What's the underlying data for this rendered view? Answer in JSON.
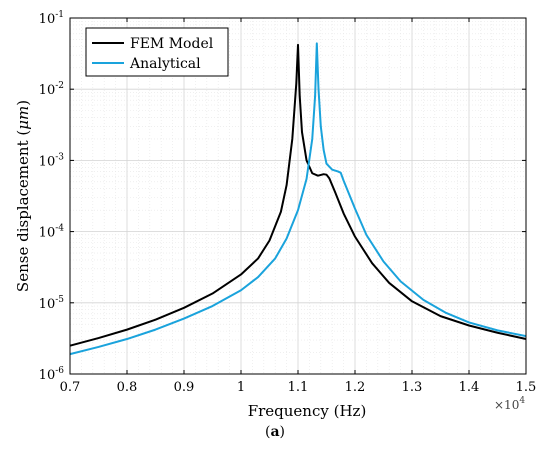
{
  "chart_data": {
    "type": "line",
    "xlabel": "Frequency (Hz)",
    "ylabel": "Sense displacement (μm)",
    "x_multiplier": "×10",
    "x_multiplier_exponent": "4",
    "xscale": "linear",
    "yscale": "log",
    "xlim": [
      0.7,
      1.5
    ],
    "ylim": [
      1e-06,
      0.1
    ],
    "x_ticks": [
      "0.7",
      "0.8",
      "0.9",
      "1",
      "1.1",
      "1.2",
      "1.3",
      "1.4",
      "1.5"
    ],
    "y_ticks": [
      {
        "value": 1e-06,
        "base": "10",
        "exp": "-6"
      },
      {
        "value": 1e-05,
        "base": "10",
        "exp": "-5"
      },
      {
        "value": 0.0001,
        "base": "10",
        "exp": "-4"
      },
      {
        "value": 0.001,
        "base": "10",
        "exp": "-3"
      },
      {
        "value": 0.01,
        "base": "10",
        "exp": "-2"
      },
      {
        "value": 0.1,
        "base": "10",
        "exp": "-1"
      }
    ],
    "grid": true,
    "legend_position": "top-left",
    "series": [
      {
        "name": "FEM Model",
        "color": "#000000",
        "points": [
          [
            0.7,
            2.5e-06
          ],
          [
            0.75,
            3.2e-06
          ],
          [
            0.8,
            4.2e-06
          ],
          [
            0.85,
            5.8e-06
          ],
          [
            0.9,
            8.5e-06
          ],
          [
            0.95,
            1.35e-05
          ],
          [
            1.0,
            2.5e-05
          ],
          [
            1.03,
            4.2e-05
          ],
          [
            1.05,
            7.5e-05
          ],
          [
            1.07,
            0.00019
          ],
          [
            1.08,
            0.00045
          ],
          [
            1.09,
            0.002
          ],
          [
            1.097,
            0.012
          ],
          [
            1.1,
            0.042
          ],
          [
            1.103,
            0.008
          ],
          [
            1.107,
            0.0025
          ],
          [
            1.115,
            0.001
          ],
          [
            1.125,
            0.00066
          ],
          [
            1.135,
            0.00061
          ],
          [
            1.145,
            0.00064
          ],
          [
            1.15,
            0.00063
          ],
          [
            1.155,
            0.00056
          ],
          [
            1.165,
            0.00036
          ],
          [
            1.18,
            0.00018
          ],
          [
            1.2,
            8.5e-05
          ],
          [
            1.23,
            3.6e-05
          ],
          [
            1.26,
            1.9e-05
          ],
          [
            1.3,
            1.05e-05
          ],
          [
            1.35,
            6.5e-06
          ],
          [
            1.4,
            4.8e-06
          ],
          [
            1.45,
            3.8e-06
          ],
          [
            1.5,
            3.1e-06
          ]
        ]
      },
      {
        "name": "Analytical",
        "color": "#1aa3dc",
        "points": [
          [
            0.7,
            1.9e-06
          ],
          [
            0.75,
            2.4e-06
          ],
          [
            0.8,
            3.1e-06
          ],
          [
            0.85,
            4.2e-06
          ],
          [
            0.9,
            6e-06
          ],
          [
            0.95,
            9e-06
          ],
          [
            1.0,
            1.5e-05
          ],
          [
            1.03,
            2.3e-05
          ],
          [
            1.06,
            4.2e-05
          ],
          [
            1.08,
            8e-05
          ],
          [
            1.1,
            0.0002
          ],
          [
            1.115,
            0.00055
          ],
          [
            1.125,
            0.002
          ],
          [
            1.13,
            0.008
          ],
          [
            1.133,
            0.044
          ],
          [
            1.136,
            0.01
          ],
          [
            1.14,
            0.003
          ],
          [
            1.145,
            0.0014
          ],
          [
            1.15,
            0.0009
          ],
          [
            1.16,
            0.00074
          ],
          [
            1.17,
            0.0007
          ],
          [
            1.175,
            0.00067
          ],
          [
            1.18,
            0.00052
          ],
          [
            1.19,
            0.00033
          ],
          [
            1.2,
            0.00021
          ],
          [
            1.22,
            9e-05
          ],
          [
            1.25,
            3.8e-05
          ],
          [
            1.28,
            2e-05
          ],
          [
            1.32,
            1.1e-05
          ],
          [
            1.36,
            7.2e-06
          ],
          [
            1.4,
            5.3e-06
          ],
          [
            1.45,
            4.1e-06
          ],
          [
            1.5,
            3.4e-06
          ]
        ]
      }
    ]
  },
  "caption": {
    "letter": "a",
    "open": "(",
    "close": ")"
  }
}
